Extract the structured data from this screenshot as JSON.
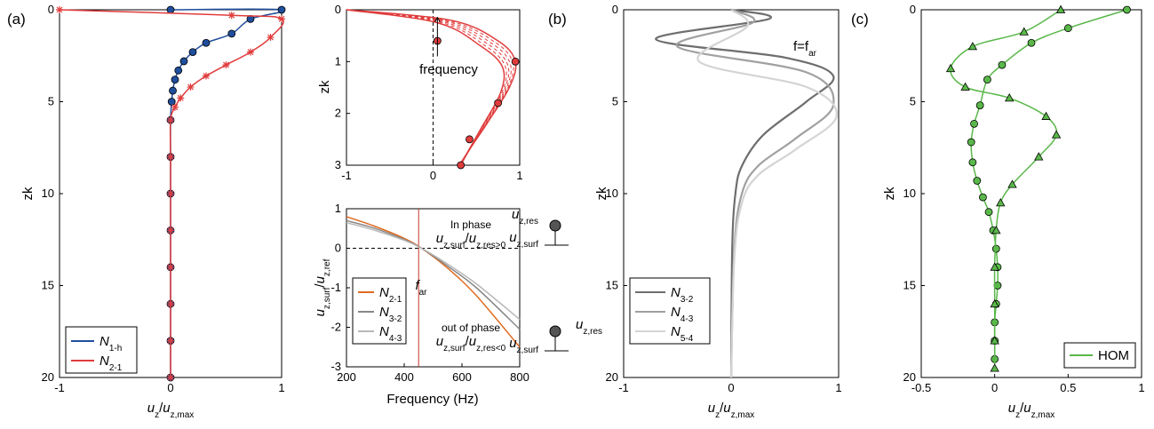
{
  "figure": {
    "panels": [
      {
        "id": "a",
        "label": "(a)"
      },
      {
        "id": "a_top",
        "label": ""
      },
      {
        "id": "a_bottom",
        "label": ""
      },
      {
        "id": "b",
        "label": "(b)"
      },
      {
        "id": "c",
        "label": "(c)"
      }
    ]
  },
  "chart_data": [
    {
      "id": "a",
      "type": "line",
      "xlabel": "u_z/u_z,max",
      "ylabel": "zk",
      "xlim": [
        -1,
        1
      ],
      "ylim": [
        20,
        0
      ],
      "y_reversed": true,
      "xticks": [
        -1,
        0,
        1
      ],
      "yticks": [
        0,
        5,
        10,
        15,
        20
      ],
      "legend": {
        "placement": "bottom-left",
        "entries": [
          {
            "label": "N",
            "sub": "1-h",
            "color": "#1f4e9c"
          },
          {
            "label": "N",
            "sub": "2-1",
            "color": "#e03c3c"
          }
        ]
      },
      "series": [
        {
          "name": "N1-h",
          "color": "#1f4e9c",
          "marker": "circle",
          "points": [
            [
              0,
              0
            ],
            [
              1,
              0
            ],
            [
              0.72,
              0.5
            ],
            [
              0.55,
              1.3
            ],
            [
              0.32,
              1.8
            ],
            [
              0.2,
              2.3
            ],
            [
              0.12,
              2.8
            ],
            [
              0.07,
              3.3
            ],
            [
              0.04,
              3.8
            ],
            [
              0.02,
              4.4
            ],
            [
              0.01,
              5
            ],
            [
              0,
              6
            ],
            [
              0,
              8
            ],
            [
              0,
              10
            ],
            [
              0,
              12
            ],
            [
              0,
              14
            ],
            [
              0,
              16
            ],
            [
              0,
              18
            ],
            [
              0,
              20
            ]
          ]
        },
        {
          "name": "N2-1",
          "color": "#e03c3c",
          "marker": "star",
          "points": [
            [
              -1,
              0
            ],
            [
              0.55,
              0.3
            ],
            [
              1,
              0.5
            ],
            [
              0.9,
              1.5
            ],
            [
              0.72,
              2.3
            ],
            [
              0.5,
              3
            ],
            [
              0.32,
              3.6
            ],
            [
              0.18,
              4.2
            ],
            [
              0.09,
              4.8
            ],
            [
              0.04,
              5.3
            ],
            [
              0,
              6
            ],
            [
              0,
              8
            ],
            [
              0,
              10
            ],
            [
              0,
              12
            ],
            [
              0,
              14
            ],
            [
              0,
              16
            ],
            [
              0,
              18
            ],
            [
              0,
              20
            ]
          ]
        }
      ]
    },
    {
      "id": "a_top",
      "type": "line",
      "xlabel": "",
      "ylabel": "zk",
      "xlim": [
        -1,
        1
      ],
      "ylim": [
        3,
        0
      ],
      "y_reversed": true,
      "xticks": [
        -1,
        0,
        1
      ],
      "yticks": [
        0,
        1,
        2,
        3
      ],
      "annotation": "frequency",
      "series": [
        {
          "name": "",
          "color": "#e03c3c",
          "points": [
            [
              -1,
              0
            ],
            [
              0.2,
              0.2
            ],
            [
              0.75,
              0.6
            ],
            [
              0.95,
              1.0
            ],
            [
              0.88,
              1.5
            ],
            [
              0.62,
              2.2
            ],
            [
              0.42,
              2.7
            ],
            [
              0.32,
              3
            ]
          ]
        },
        {
          "name": "",
          "color": "#e03c3c",
          "points": [
            [
              -1,
              0
            ],
            [
              0.05,
              0.25
            ],
            [
              0.55,
              0.7
            ],
            [
              0.8,
              1.1
            ],
            [
              0.78,
              1.6
            ],
            [
              0.55,
              2.3
            ],
            [
              0.38,
              2.8
            ],
            [
              0.3,
              3
            ]
          ]
        }
      ]
    },
    {
      "id": "a_bottom",
      "type": "line",
      "xlabel": "Frequency (Hz)",
      "ylabel": "u_z,surf/u_z,ref",
      "xlim": [
        200,
        800
      ],
      "ylim": [
        -3,
        1
      ],
      "xticks": [
        200,
        400,
        600,
        800
      ],
      "yticks": [
        1,
        0,
        -1,
        -2,
        -3
      ],
      "vline": 450,
      "hline": 0,
      "annotations": {
        "in_phase": "In phase",
        "in_phase_cond": "u_z,surf/u_z,res>0",
        "out_phase": "out of phase",
        "out_phase_cond": "u_z,surf/u_z,res<0",
        "far": "f_ar",
        "uz_res": "u_z,res",
        "uz_surf": "u_z,surf"
      },
      "legend": {
        "placement": "bottom-left",
        "entries": [
          {
            "label": "N",
            "sub": "2-1",
            "color": "#e06a1f"
          },
          {
            "label": "N",
            "sub": "3-2",
            "color": "#888888"
          },
          {
            "label": "N",
            "sub": "4-3",
            "color": "#b8b8b8"
          }
        ]
      },
      "series": [
        {
          "name": "N2-1",
          "color": "#e06a1f",
          "points": [
            [
              200,
              0.8
            ],
            [
              300,
              0.55
            ],
            [
              400,
              0.25
            ],
            [
              460,
              0
            ],
            [
              550,
              -0.5
            ],
            [
              650,
              -1.2
            ],
            [
              800,
              -2.5
            ]
          ]
        },
        {
          "name": "N3-2",
          "color": "#888888",
          "points": [
            [
              200,
              0.7
            ],
            [
              300,
              0.5
            ],
            [
              400,
              0.22
            ],
            [
              460,
              0
            ],
            [
              550,
              -0.45
            ],
            [
              650,
              -1.0
            ],
            [
              800,
              -2.05
            ]
          ]
        },
        {
          "name": "N4-3",
          "color": "#b8b8b8",
          "points": [
            [
              200,
              0.65
            ],
            [
              300,
              0.45
            ],
            [
              400,
              0.2
            ],
            [
              460,
              0
            ],
            [
              550,
              -0.4
            ],
            [
              650,
              -0.9
            ],
            [
              800,
              -1.8
            ]
          ]
        }
      ]
    },
    {
      "id": "b",
      "type": "line",
      "xlabel": "u_z/u_z,max",
      "ylabel": "zk",
      "xlim": [
        -1,
        1
      ],
      "ylim": [
        20,
        0
      ],
      "y_reversed": true,
      "xticks": [
        -1,
        0,
        1
      ],
      "yticks": [
        0,
        5,
        10,
        15,
        20
      ],
      "annotation": "f=f_ar",
      "legend": {
        "placement": "bottom-left",
        "entries": [
          {
            "label": "N",
            "sub": "3-2",
            "color": "#6e6e6e"
          },
          {
            "label": "N",
            "sub": "4-3",
            "color": "#a0a0a0"
          },
          {
            "label": "N",
            "sub": "5-4",
            "color": "#d4d4d4"
          }
        ]
      },
      "series": [
        {
          "name": "N3-2",
          "color": "#6e6e6e",
          "points": [
            [
              0,
              0
            ],
            [
              0.35,
              0.5
            ],
            [
              -0.7,
              1.6
            ],
            [
              0.5,
              2.6
            ],
            [
              0.95,
              3.6
            ],
            [
              0.7,
              5
            ],
            [
              0.3,
              6.8
            ],
            [
              0.1,
              8.5
            ],
            [
              0.04,
              10
            ],
            [
              0.01,
              13
            ],
            [
              0,
              20
            ]
          ]
        },
        {
          "name": "N4-3",
          "color": "#a0a0a0",
          "points": [
            [
              0,
              0
            ],
            [
              0.2,
              0.7
            ],
            [
              -0.5,
              2.0
            ],
            [
              0.7,
              3.4
            ],
            [
              0.95,
              5.2
            ],
            [
              0.6,
              7
            ],
            [
              0.25,
              8.5
            ],
            [
              0.1,
              10
            ],
            [
              0.03,
              13
            ],
            [
              0,
              20
            ]
          ]
        },
        {
          "name": "N5-4",
          "color": "#d4d4d4",
          "points": [
            [
              0,
              0
            ],
            [
              0.15,
              0.9
            ],
            [
              -0.3,
              2.8
            ],
            [
              0.7,
              4.2
            ],
            [
              0.98,
              5.8
            ],
            [
              0.6,
              7.6
            ],
            [
              0.25,
              9
            ],
            [
              0.1,
              10.5
            ],
            [
              0.03,
              13.5
            ],
            [
              0,
              20
            ]
          ]
        }
      ]
    },
    {
      "id": "c",
      "type": "line",
      "xlabel": "u_z/u_z,max",
      "ylabel": "zk",
      "xlim": [
        -0.5,
        1
      ],
      "ylim": [
        20,
        0
      ],
      "y_reversed": true,
      "xticks": [
        -0.5,
        0,
        0.5,
        1
      ],
      "yticks": [
        0,
        5,
        10,
        15,
        20
      ],
      "legend": {
        "placement": "bottom-right",
        "entries": [
          {
            "label": "HOM",
            "color": "#5ab84a"
          }
        ]
      },
      "series": [
        {
          "name": "circles",
          "color": "#5ab84a",
          "marker": "circle",
          "points": [
            [
              0.9,
              0
            ],
            [
              0.5,
              1
            ],
            [
              0.25,
              1.8
            ],
            [
              0.05,
              3
            ],
            [
              -0.05,
              3.8
            ],
            [
              -0.1,
              5.2
            ],
            [
              -0.14,
              6.2
            ],
            [
              -0.16,
              7.2
            ],
            [
              -0.15,
              8.3
            ],
            [
              -0.12,
              9.3
            ],
            [
              -0.08,
              10.2
            ],
            [
              -0.04,
              11
            ],
            [
              -0.01,
              12
            ],
            [
              0.01,
              13
            ],
            [
              0.02,
              14
            ],
            [
              0.02,
              15
            ],
            [
              0.01,
              16
            ],
            [
              0,
              17
            ],
            [
              0,
              18
            ],
            [
              0,
              19
            ]
          ]
        },
        {
          "name": "triangles",
          "color": "#5ab84a",
          "marker": "triangle",
          "points": [
            [
              0.45,
              0
            ],
            [
              0.2,
              1.2
            ],
            [
              -0.15,
              2
            ],
            [
              -0.3,
              3.2
            ],
            [
              -0.2,
              4.2
            ],
            [
              0.1,
              4.8
            ],
            [
              0.35,
              5.8
            ],
            [
              0.42,
              6.8
            ],
            [
              0.3,
              8
            ],
            [
              0.12,
              9.5
            ],
            [
              0.04,
              10.5
            ],
            [
              0.01,
              12
            ],
            [
              0,
              14
            ],
            [
              0,
              16
            ],
            [
              0,
              18
            ],
            [
              0,
              19.5
            ]
          ]
        }
      ]
    }
  ]
}
